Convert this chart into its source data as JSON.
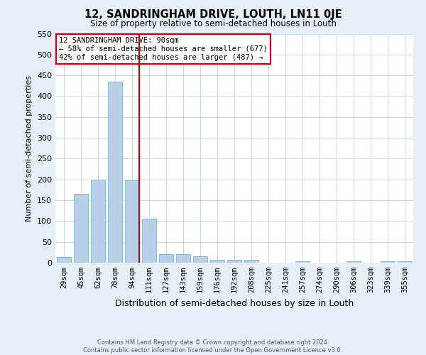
{
  "title": "12, SANDRINGHAM DRIVE, LOUTH, LN11 0JE",
  "subtitle": "Size of property relative to semi-detached houses in Louth",
  "xlabel": "Distribution of semi-detached houses by size in Louth",
  "ylabel": "Number of semi-detached properties",
  "categories": [
    "29sqm",
    "45sqm",
    "62sqm",
    "78sqm",
    "94sqm",
    "111sqm",
    "127sqm",
    "143sqm",
    "159sqm",
    "176sqm",
    "192sqm",
    "208sqm",
    "225sqm",
    "241sqm",
    "257sqm",
    "274sqm",
    "290sqm",
    "306sqm",
    "323sqm",
    "339sqm",
    "355sqm"
  ],
  "values": [
    14,
    165,
    200,
    435,
    197,
    105,
    20,
    20,
    15,
    6,
    6,
    6,
    0,
    0,
    4,
    0,
    0,
    4,
    0,
    4,
    4
  ],
  "bar_color": "#b8d0e8",
  "bar_edge_color": "#7aafd4",
  "vline_color": "#cc0000",
  "vline_index": 4,
  "ylim": [
    0,
    550
  ],
  "yticks": [
    0,
    50,
    100,
    150,
    200,
    250,
    300,
    350,
    400,
    450,
    500,
    550
  ],
  "annotation_title": "12 SANDRINGHAM DRIVE: 90sqm",
  "annotation_line1": "← 58% of semi-detached houses are smaller (677)",
  "annotation_line2": "42% of semi-detached houses are larger (487) →",
  "annotation_box_color": "#cc0000",
  "footer_line1": "Contains HM Land Registry data © Crown copyright and database right 2024.",
  "footer_line2": "Contains public sector information licensed under the Open Government Licence v3.0.",
  "bg_color": "#e8eef5",
  "plot_bg_color": "#ffffff",
  "grid_color": "#c8d4e0"
}
